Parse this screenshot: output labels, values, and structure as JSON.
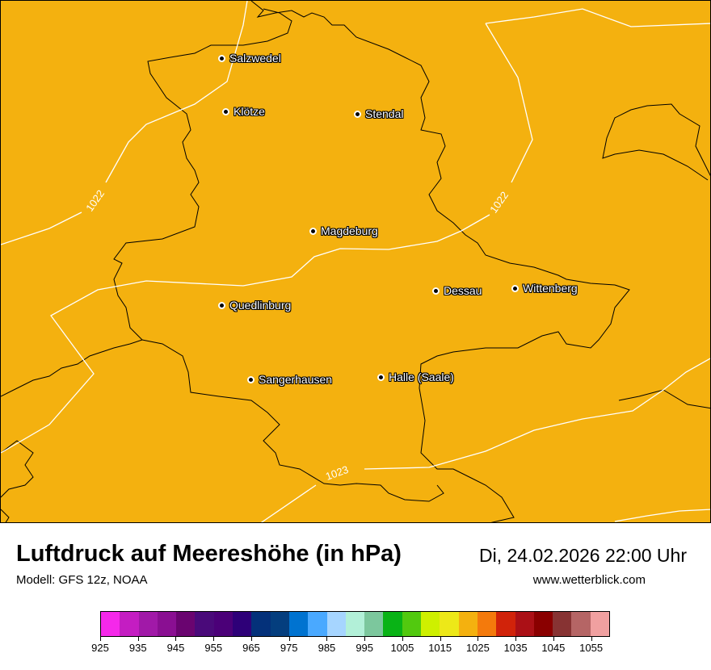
{
  "map": {
    "background_color": "#f4b10f",
    "isobar_labels": [
      "1022",
      "1022",
      "1023"
    ],
    "cities": [
      {
        "name": "Salzwedel"
      },
      {
        "name": "Klötze"
      },
      {
        "name": "Stendal"
      },
      {
        "name": "Magdeburg"
      },
      {
        "name": "Dessau"
      },
      {
        "name": "Wittenberg"
      },
      {
        "name": "Quedlinburg"
      },
      {
        "name": "Sangerhausen"
      },
      {
        "name": "Halle (Saale)"
      }
    ]
  },
  "footer": {
    "title": "Luftdruck auf Meereshöhe (in hPa)",
    "model": "Modell: GFS 12z, NOAA",
    "datetime": "Di, 24.02.2026 22:00 Uhr",
    "website": "www.wetterblick.com"
  },
  "legend": {
    "tick_labels": [
      "925",
      "935",
      "945",
      "955",
      "965",
      "975",
      "985",
      "995",
      "1005",
      "1015",
      "1025",
      "1035",
      "1045",
      "1055"
    ],
    "colors": [
      "#f528ea",
      "#c41dc2",
      "#a119a8",
      "#8a0f92",
      "#6a0470",
      "#4a0a7a",
      "#4b0078",
      "#2e0078",
      "#04317a",
      "#043e7e",
      "#0073d0",
      "#4aa9ff",
      "#a6d5ff",
      "#b2f0d8",
      "#7cc79d",
      "#09b316",
      "#52c90f",
      "#cef000",
      "#ede818",
      "#f4b10f",
      "#f47a0c",
      "#d1230a",
      "#ab1016",
      "#8a0000",
      "#873333",
      "#b56565",
      "#f0a0a0"
    ]
  }
}
